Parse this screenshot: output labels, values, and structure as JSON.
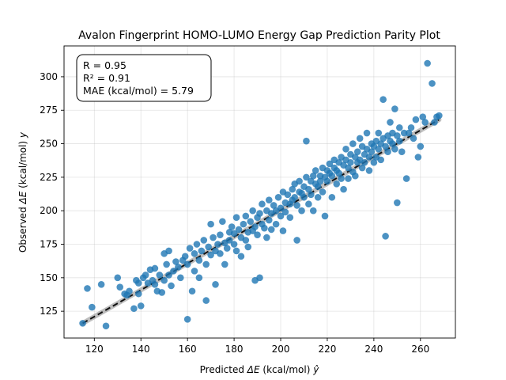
{
  "chart_data": {
    "type": "scatter",
    "title": "Avalon Fingerprint HOMO-LUMO Energy Gap Prediction Parity Plot",
    "xlabel_prefix": "Predicted ",
    "xlabel_sym": "ΔE",
    "xlabel_suffix": " (kcal/mol) ",
    "xlabel_hat": "ŷ",
    "ylabel_prefix": "Observed ",
    "ylabel_sym": "ΔE",
    "ylabel_suffix": " (kcal/mol) ",
    "ylabel_var": "y",
    "xlim": [
      107,
      275
    ],
    "ylim": [
      105,
      323
    ],
    "xticks": [
      120,
      140,
      160,
      180,
      200,
      220,
      240,
      260
    ],
    "yticks": [
      125,
      150,
      175,
      200,
      225,
      250,
      275,
      300
    ],
    "grid": true,
    "annotation": {
      "lines": [
        "R = 0.95",
        "R² = 0.91",
        "MAE (kcal/mol) = 5.79"
      ],
      "placement": "top-left"
    },
    "identity_line": {
      "from": [
        115,
        116
      ],
      "to": [
        268,
        268
      ]
    },
    "marker_color": "#1f77b4",
    "points": [
      [
        115,
        116
      ],
      [
        117,
        142
      ],
      [
        119,
        128
      ],
      [
        123,
        145
      ],
      [
        125,
        114
      ],
      [
        130,
        150
      ],
      [
        131,
        143
      ],
      [
        133,
        138
      ],
      [
        134,
        137
      ],
      [
        135,
        140
      ],
      [
        137,
        127
      ],
      [
        138,
        148
      ],
      [
        139,
        146
      ],
      [
        139,
        138
      ],
      [
        140,
        129
      ],
      [
        141,
        150
      ],
      [
        142,
        152
      ],
      [
        143,
        146
      ],
      [
        144,
        156
      ],
      [
        145,
        148
      ],
      [
        146,
        145
      ],
      [
        146,
        157
      ],
      [
        147,
        140
      ],
      [
        148,
        152
      ],
      [
        149,
        139
      ],
      [
        150,
        148
      ],
      [
        150,
        168
      ],
      [
        151,
        160
      ],
      [
        152,
        152
      ],
      [
        152,
        170
      ],
      [
        153,
        144
      ],
      [
        154,
        155
      ],
      [
        155,
        162
      ],
      [
        156,
        158
      ],
      [
        157,
        150
      ],
      [
        158,
        163
      ],
      [
        159,
        166
      ],
      [
        160,
        119
      ],
      [
        160,
        160
      ],
      [
        161,
        172
      ],
      [
        162,
        140
      ],
      [
        163,
        168
      ],
      [
        163,
        155
      ],
      [
        164,
        175
      ],
      [
        165,
        163
      ],
      [
        165,
        150
      ],
      [
        166,
        170
      ],
      [
        167,
        178
      ],
      [
        168,
        160
      ],
      [
        168,
        133
      ],
      [
        169,
        173
      ],
      [
        170,
        167
      ],
      [
        170,
        190
      ],
      [
        171,
        180
      ],
      [
        172,
        145
      ],
      [
        172,
        170
      ],
      [
        173,
        175
      ],
      [
        174,
        168
      ],
      [
        174,
        182
      ],
      [
        175,
        192
      ],
      [
        176,
        176
      ],
      [
        176,
        160
      ],
      [
        177,
        172
      ],
      [
        178,
        184
      ],
      [
        178,
        178
      ],
      [
        179,
        188
      ],
      [
        180,
        175
      ],
      [
        180,
        183
      ],
      [
        181,
        170
      ],
      [
        181,
        195
      ],
      [
        182,
        186
      ],
      [
        183,
        180
      ],
      [
        183,
        166
      ],
      [
        184,
        190
      ],
      [
        185,
        178
      ],
      [
        185,
        196
      ],
      [
        186,
        184
      ],
      [
        186,
        173
      ],
      [
        187,
        192
      ],
      [
        188,
        185
      ],
      [
        188,
        200
      ],
      [
        189,
        188
      ],
      [
        189,
        148
      ],
      [
        190,
        195
      ],
      [
        190,
        182
      ],
      [
        191,
        198
      ],
      [
        191,
        150
      ],
      [
        192,
        190
      ],
      [
        192,
        205
      ],
      [
        193,
        187
      ],
      [
        194,
        200
      ],
      [
        194,
        180
      ],
      [
        195,
        193
      ],
      [
        195,
        208
      ],
      [
        196,
        198
      ],
      [
        196,
        186
      ],
      [
        197,
        204
      ],
      [
        198,
        200
      ],
      [
        198,
        190
      ],
      [
        199,
        210
      ],
      [
        200,
        202
      ],
      [
        200,
        196
      ],
      [
        201,
        214
      ],
      [
        201,
        185
      ],
      [
        202,
        206
      ],
      [
        202,
        199
      ],
      [
        203,
        212
      ],
      [
        204,
        205
      ],
      [
        204,
        195
      ],
      [
        205,
        216
      ],
      [
        205,
        208
      ],
      [
        206,
        210
      ],
      [
        206,
        220
      ],
      [
        207,
        204
      ],
      [
        207,
        178
      ],
      [
        208,
        214
      ],
      [
        208,
        222
      ],
      [
        209,
        213
      ],
      [
        209,
        200
      ],
      [
        210,
        218
      ],
      [
        210,
        210
      ],
      [
        211,
        225
      ],
      [
        211,
        252
      ],
      [
        212,
        216
      ],
      [
        212,
        205
      ],
      [
        213,
        222
      ],
      [
        213,
        212
      ],
      [
        214,
        226
      ],
      [
        214,
        200
      ],
      [
        215,
        220
      ],
      [
        215,
        230
      ],
      [
        216,
        218
      ],
      [
        216,
        210
      ],
      [
        217,
        226
      ],
      [
        217,
        222
      ],
      [
        218,
        232
      ],
      [
        218,
        214
      ],
      [
        219,
        225
      ],
      [
        219,
        196
      ],
      [
        220,
        230
      ],
      [
        220,
        222
      ],
      [
        221,
        235
      ],
      [
        221,
        228
      ],
      [
        222,
        226
      ],
      [
        222,
        210
      ],
      [
        223,
        232
      ],
      [
        223,
        238
      ],
      [
        224,
        230
      ],
      [
        224,
        220
      ],
      [
        225,
        236
      ],
      [
        225,
        228
      ],
      [
        226,
        240
      ],
      [
        226,
        224
      ],
      [
        227,
        234
      ],
      [
        227,
        216
      ],
      [
        228,
        238
      ],
      [
        228,
        246
      ],
      [
        229,
        232
      ],
      [
        229,
        224
      ],
      [
        230,
        242
      ],
      [
        230,
        236
      ],
      [
        231,
        229
      ],
      [
        231,
        250
      ],
      [
        232,
        240
      ],
      [
        232,
        226
      ],
      [
        233,
        244
      ],
      [
        233,
        236
      ],
      [
        234,
        238
      ],
      [
        234,
        254
      ],
      [
        235,
        248
      ],
      [
        235,
        232
      ],
      [
        236,
        242
      ],
      [
        236,
        236
      ],
      [
        237,
        246
      ],
      [
        237,
        258
      ],
      [
        238,
        240
      ],
      [
        238,
        230
      ],
      [
        239,
        250
      ],
      [
        239,
        244
      ],
      [
        240,
        248
      ],
      [
        240,
        236
      ],
      [
        241,
        252
      ],
      [
        241,
        240
      ],
      [
        242,
        246
      ],
      [
        242,
        258
      ],
      [
        243,
        250
      ],
      [
        243,
        238
      ],
      [
        244,
        254
      ],
      [
        244,
        283
      ],
      [
        245,
        248
      ],
      [
        245,
        181
      ],
      [
        246,
        256
      ],
      [
        246,
        244
      ],
      [
        247,
        252
      ],
      [
        247,
        266
      ],
      [
        248,
        250
      ],
      [
        248,
        258
      ],
      [
        249,
        246
      ],
      [
        249,
        276
      ],
      [
        250,
        256
      ],
      [
        250,
        206
      ],
      [
        251,
        252
      ],
      [
        251,
        262
      ],
      [
        252,
        244
      ],
      [
        253,
        258
      ],
      [
        254,
        224
      ],
      [
        255,
        258
      ],
      [
        256,
        262
      ],
      [
        257,
        254
      ],
      [
        258,
        268
      ],
      [
        259,
        240
      ],
      [
        260,
        248
      ],
      [
        261,
        270
      ],
      [
        262,
        266
      ],
      [
        263,
        310
      ],
      [
        265,
        295
      ],
      [
        266,
        266
      ],
      [
        267,
        270
      ],
      [
        268,
        271
      ]
    ]
  }
}
